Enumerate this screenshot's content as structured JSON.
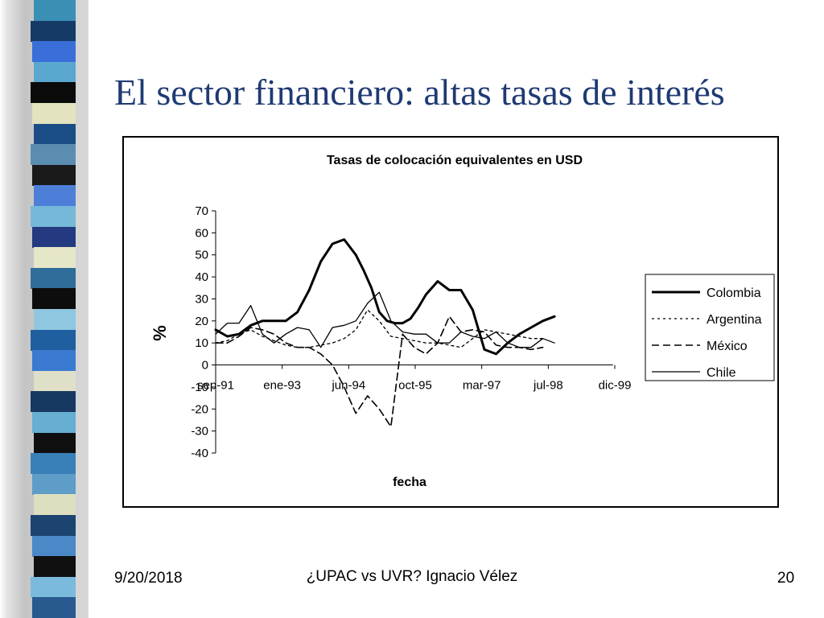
{
  "slide": {
    "title": "El sector financiero: altas tasas de interés",
    "footer_date": "9/20/2018",
    "footer_center": "¿UPAC vs UVR? Ignacio Vélez",
    "page_number": "20"
  },
  "decoration": {
    "stripe_colors": [
      "#3a8fb5",
      "#163a66",
      "#3a6ed8",
      "#5aa8d0",
      "#0a0a0a",
      "#e3e3c0",
      "#1b4d86",
      "#5a8db0",
      "#1a1a1a",
      "#4d7fd8",
      "#76b8d8",
      "#243a80",
      "#e6e6c8",
      "#2f6d9a",
      "#0d0d0d",
      "#8fc6e0",
      "#1f5fa0",
      "#3a7ad0",
      "#e0e0c8",
      "#173861",
      "#66aed2",
      "#0f0f0f",
      "#3a80b8",
      "#5d9dc8",
      "#dede c0",
      "#1c4470",
      "#4a88c8",
      "#101010",
      "#7abadc",
      "#285a90"
    ]
  },
  "chart_data": {
    "type": "line",
    "title": "Tasas de colocación equivalentes en USD",
    "xlabel": "fecha",
    "ylabel": "%",
    "x_ticks": [
      "sep-91",
      "ene-93",
      "jun-94",
      "oct-95",
      "mar-97",
      "jul-98",
      "dic-99"
    ],
    "xlim": [
      0,
      100
    ],
    "ylim": [
      -40,
      70
    ],
    "y_ticks": [
      -40,
      -30,
      -20,
      -10,
      0,
      10,
      20,
      30,
      40,
      50,
      60,
      70
    ],
    "legend_position": "right",
    "grid": false,
    "x_unit": "months since sep-91",
    "series": [
      {
        "name": "Colombia",
        "style": "thick",
        "x": [
          0,
          3,
          6,
          9,
          12,
          15,
          18,
          21,
          24,
          27,
          30,
          33,
          36,
          38,
          40,
          42,
          44,
          46,
          48,
          50,
          52,
          54,
          57,
          60,
          63,
          66,
          69,
          72,
          75,
          78,
          81,
          84,
          87,
          90,
          93,
          96,
          99,
          102
        ],
        "y": [
          16,
          13,
          14,
          18,
          20,
          20,
          20,
          24,
          34,
          47,
          55,
          57,
          50,
          43,
          35,
          24,
          20,
          19,
          19,
          21,
          26,
          32,
          38,
          34,
          34,
          25,
          7,
          5,
          10,
          14,
          17,
          20,
          22,
          null,
          null,
          null,
          null,
          null
        ]
      },
      {
        "name": "Argentina",
        "style": "dotted",
        "x": [
          0,
          3,
          6,
          9,
          12,
          15,
          18,
          21,
          24,
          27,
          30,
          33,
          36,
          39,
          42,
          45,
          48,
          51,
          54,
          57,
          60,
          63,
          66,
          69,
          72,
          75,
          78,
          81,
          84,
          87,
          90,
          93,
          96,
          99,
          102
        ],
        "y": [
          10,
          11,
          14,
          16,
          13,
          11,
          9,
          8,
          8,
          9,
          10,
          12,
          16,
          25,
          20,
          13,
          12,
          11,
          10,
          10,
          9,
          8,
          12,
          16,
          15,
          14,
          13,
          12,
          12,
          null,
          null,
          null,
          null,
          null,
          null
        ]
      },
      {
        "name": "México",
        "style": "dashed",
        "x": [
          0,
          3,
          6,
          9,
          12,
          15,
          18,
          21,
          24,
          27,
          30,
          33,
          36,
          39,
          42,
          45,
          48,
          51,
          54,
          57,
          60,
          63,
          66,
          69,
          72,
          75,
          78,
          81,
          84,
          87,
          90,
          93,
          96,
          99,
          102
        ],
        "y": [
          10,
          10,
          13,
          17,
          16,
          14,
          10,
          8,
          8,
          5,
          0,
          -10,
          -22,
          -14,
          -20,
          -28,
          14,
          8,
          5,
          10,
          22,
          15,
          16,
          15,
          9,
          8,
          8,
          7,
          8,
          null,
          null,
          null,
          null,
          null,
          null
        ]
      },
      {
        "name": "Chile",
        "style": "thin",
        "x": [
          0,
          3,
          6,
          9,
          12,
          15,
          18,
          21,
          24,
          27,
          30,
          33,
          36,
          39,
          42,
          45,
          48,
          51,
          54,
          57,
          60,
          63,
          66,
          69,
          72,
          75,
          78,
          81,
          84,
          87,
          90,
          93,
          96,
          99,
          102
        ],
        "y": [
          14,
          19,
          19,
          27,
          14,
          10,
          14,
          17,
          16,
          8,
          17,
          18,
          20,
          28,
          33,
          20,
          15,
          14,
          14,
          10,
          10,
          15,
          13,
          12,
          15,
          10,
          8,
          8,
          12,
          10,
          null,
          null,
          null,
          null,
          null
        ]
      }
    ]
  }
}
